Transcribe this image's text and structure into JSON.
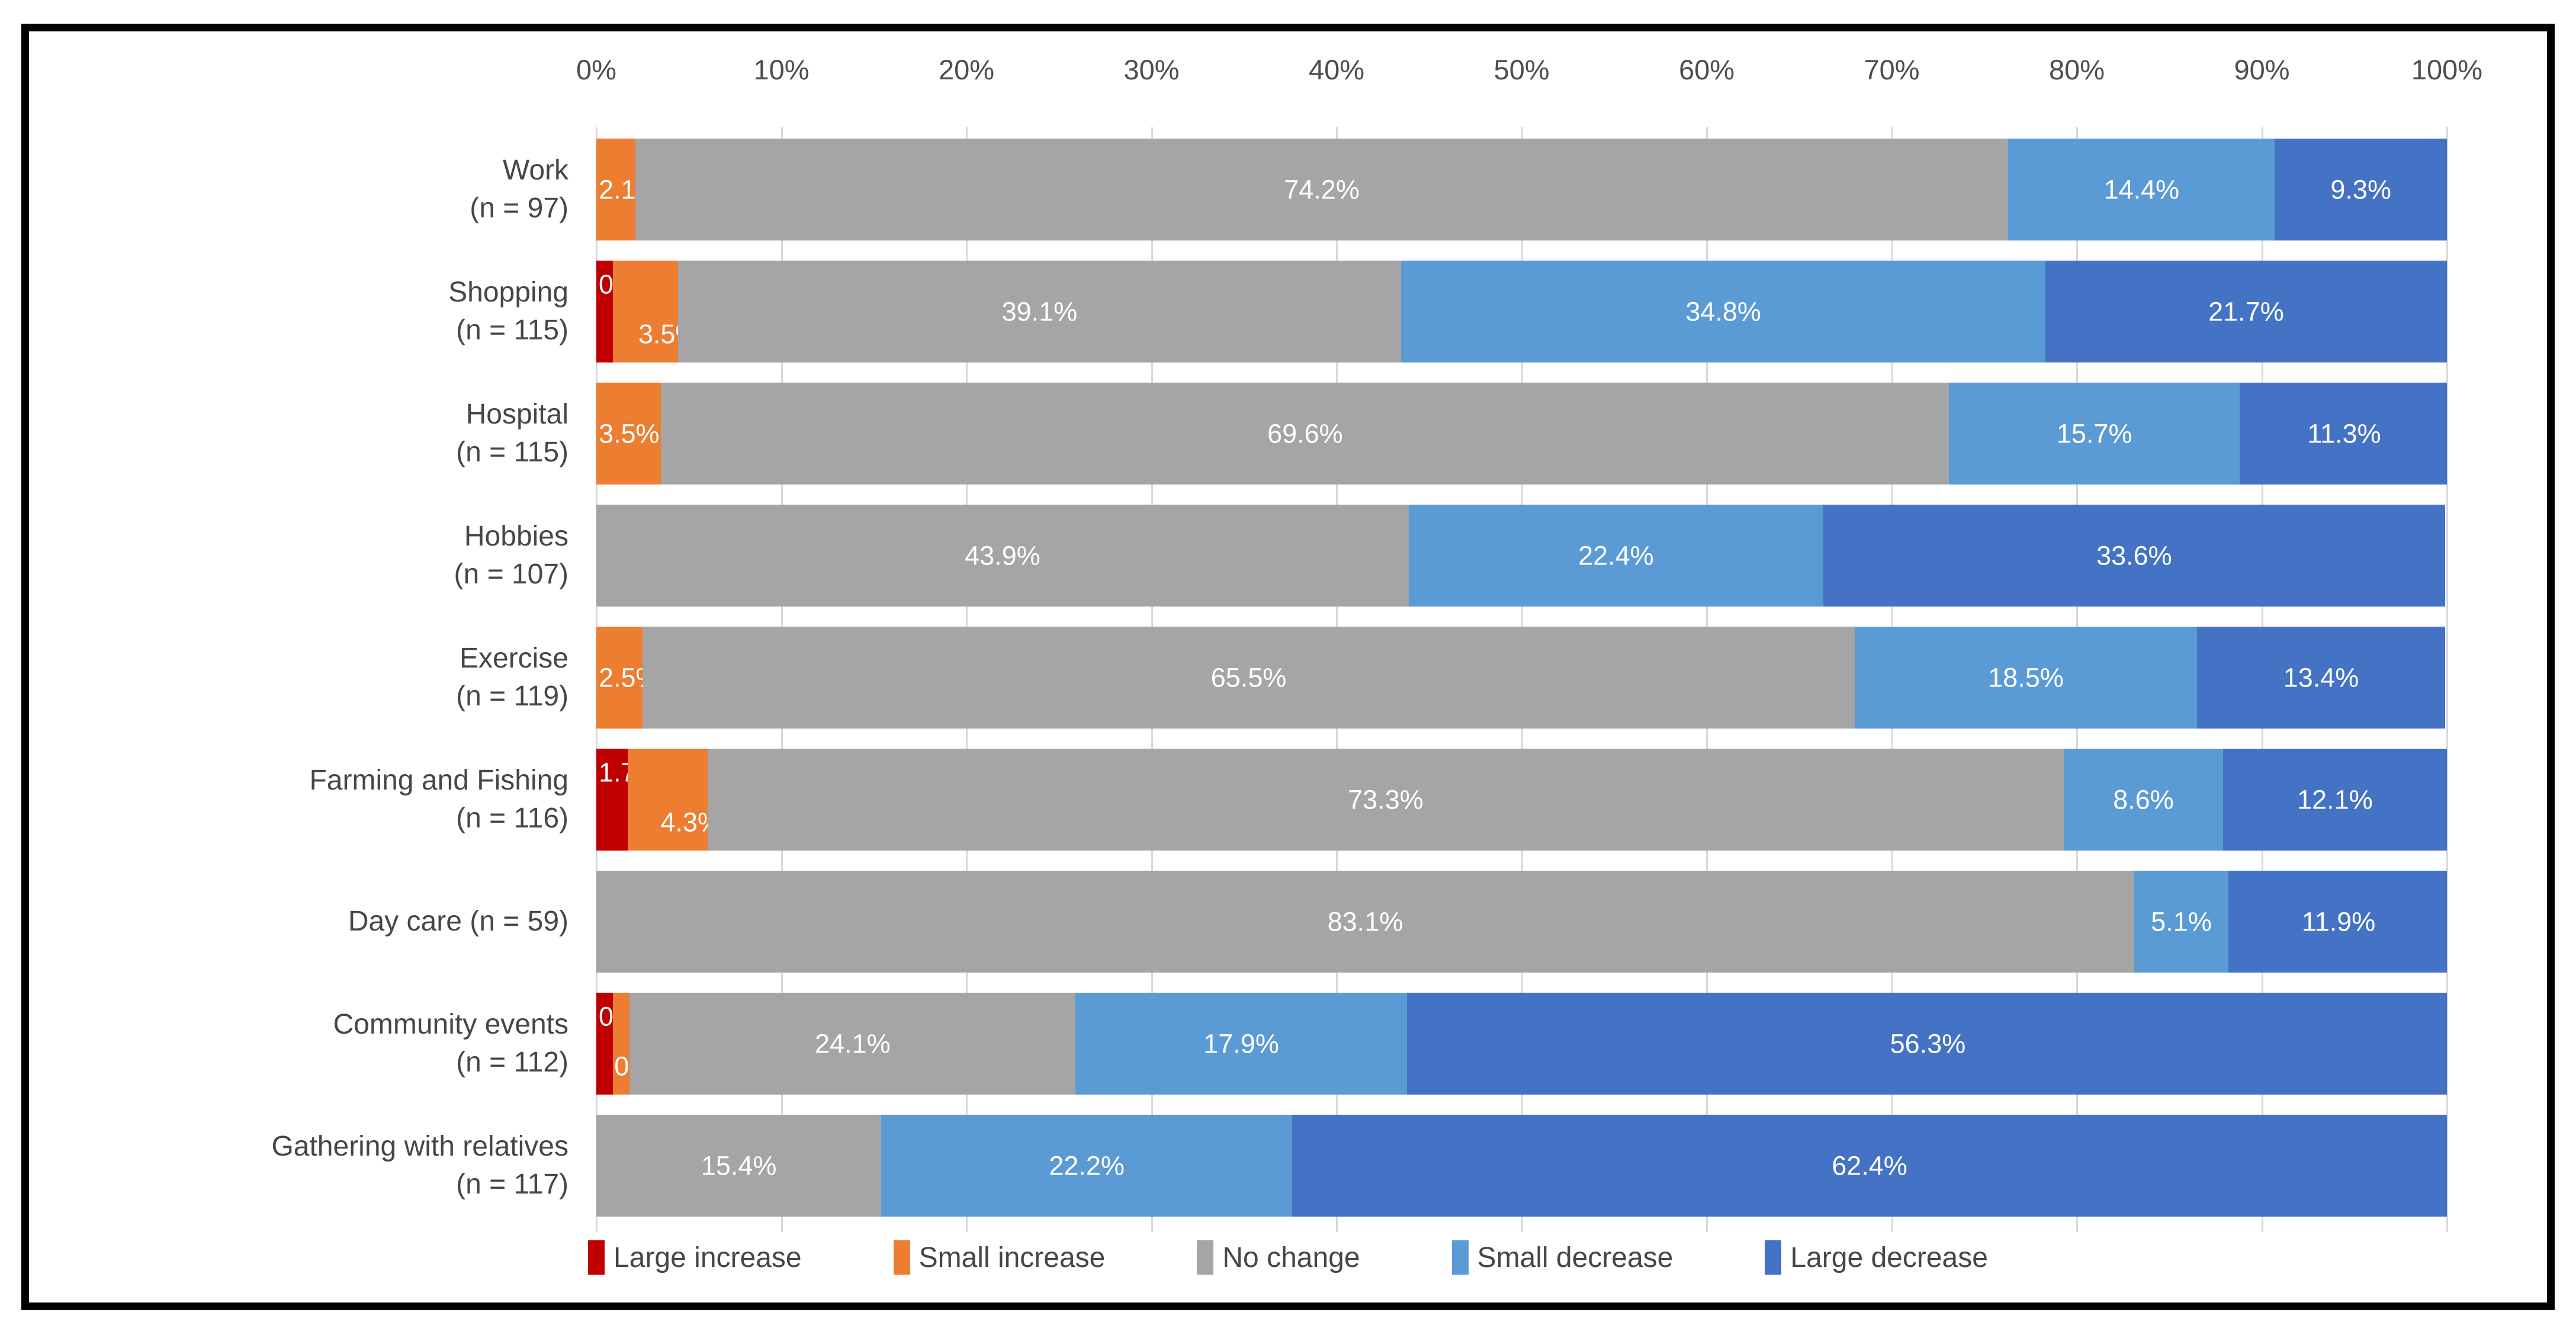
{
  "chart_data": {
    "type": "bar",
    "stacked": true,
    "orientation": "horizontal",
    "title": "",
    "xlabel": "",
    "ylabel": "",
    "x_axis": {
      "position": "top",
      "range": [
        0,
        100
      ],
      "ticks": [
        "0%",
        "10%",
        "20%",
        "30%",
        "40%",
        "50%",
        "60%",
        "70%",
        "80%",
        "90%",
        "100%"
      ],
      "gridlines": true
    },
    "categories": [
      [
        "Work",
        "(n = 97)"
      ],
      [
        "Shopping",
        "(n = 115)"
      ],
      [
        "Hospital",
        "(n = 115)"
      ],
      [
        "Hobbies",
        "(n = 107)"
      ],
      [
        "Exercise",
        "(n = 119)"
      ],
      [
        "Farming and Fishing",
        "(n = 116)"
      ],
      [
        "Day care (n = 59)"
      ],
      [
        "Community events",
        "(n = 112)"
      ],
      [
        "Gathering with relatives",
        "(n = 117)"
      ]
    ],
    "series": [
      {
        "name": "Large increase",
        "color": "#C00000",
        "values": [
          0,
          0.9,
          0,
          0,
          0,
          1.7,
          0,
          0.9,
          0
        ]
      },
      {
        "name": "Small increase",
        "color": "#ED7D31",
        "values": [
          2.1,
          3.5,
          3.5,
          0,
          2.5,
          4.3,
          0,
          0.9,
          0
        ]
      },
      {
        "name": "No change",
        "color": "#A5A5A5",
        "values": [
          74.2,
          39.1,
          69.6,
          43.9,
          65.5,
          73.3,
          83.1,
          24.1,
          15.4
        ]
      },
      {
        "name": "Small decrease",
        "color": "#5B9BD5",
        "values": [
          14.4,
          34.8,
          15.7,
          22.4,
          18.5,
          8.6,
          5.1,
          17.9,
          22.2
        ]
      },
      {
        "name": "Large decrease",
        "color": "#4472C4",
        "values": [
          9.3,
          21.7,
          11.3,
          33.6,
          13.4,
          12.1,
          11.9,
          56.3,
          62.4
        ]
      }
    ],
    "data_label_suffix": "%",
    "legend_position": "bottom"
  },
  "colors": {
    "frame_border": "#000000",
    "gridline": "#D9D9D9",
    "axis_text": "#4D4D4D",
    "category_text": "#464646",
    "data_label_text": "#FFFFFF",
    "background": "#FFFFFF"
  }
}
